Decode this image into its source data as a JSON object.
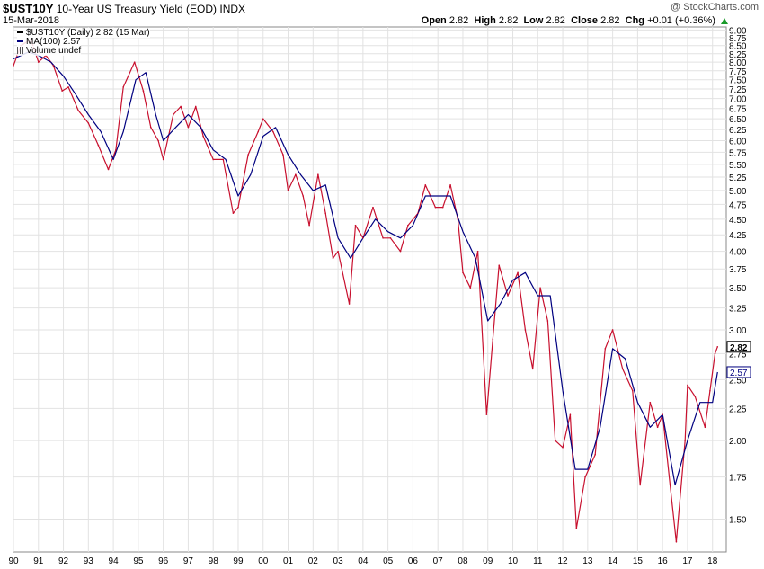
{
  "header": {
    "symbol": "$UST10Y",
    "name": "10-Year US Treasury Yield (EOD)",
    "exchange": "INDX",
    "date": "15-Mar-2018",
    "credit": "@ StockCharts.com",
    "ohlc": {
      "open_label": "Open",
      "open": "2.82",
      "high_label": "High",
      "high": "2.82",
      "low_label": "Low",
      "low": "2.82",
      "close_label": "Close",
      "close": "2.82",
      "chg_label": "Chg",
      "chg": "+0.01 (+0.36%)"
    }
  },
  "legend": {
    "price": "$UST10Y (Daily) 2.82 (15 Mar)",
    "ma": "MA(100) 2.57",
    "volume": "Volume undef"
  },
  "colors": {
    "price": "#c8102e",
    "ma": "#000080",
    "grid": "#e2e2e2",
    "axis": "#888888",
    "up": "#1a9a2a"
  },
  "chart_data": {
    "type": "line",
    "title": "$UST10Y 10-Year US Treasury Yield (EOD)",
    "y_scale": "log",
    "ylim": [
      1.33,
      9.1
    ],
    "xlim": [
      1990.0,
      2018.55
    ],
    "x_ticks": [
      "90",
      "91",
      "92",
      "93",
      "94",
      "95",
      "96",
      "97",
      "98",
      "99",
      "00",
      "01",
      "02",
      "03",
      "04",
      "05",
      "06",
      "07",
      "08",
      "09",
      "10",
      "11",
      "12",
      "13",
      "14",
      "15",
      "16",
      "17",
      "18"
    ],
    "y_ticks": [
      "1.50",
      "1.75",
      "2.00",
      "2.25",
      "2.50",
      "2.75",
      "3.00",
      "3.25",
      "3.50",
      "3.75",
      "4.00",
      "4.25",
      "4.50",
      "4.75",
      "5.00",
      "5.25",
      "5.50",
      "5.75",
      "6.00",
      "6.25",
      "6.50",
      "6.75",
      "7.00",
      "7.25",
      "7.50",
      "7.75",
      "8.00",
      "8.25",
      "8.50",
      "8.75",
      "9.00"
    ],
    "last_price_label": "2.82",
    "ma_label": "2.57",
    "series": [
      {
        "name": "$UST10Y (Daily)",
        "x": [
          1990.0,
          1990.3,
          1990.7,
          1991.0,
          1991.3,
          1991.6,
          1991.95,
          1992.2,
          1992.6,
          1993.0,
          1993.4,
          1993.8,
          1994.1,
          1994.4,
          1994.85,
          1995.2,
          1995.5,
          1995.8,
          1996.0,
          1996.4,
          1996.7,
          1997.0,
          1997.3,
          1997.6,
          1998.0,
          1998.4,
          1998.8,
          1999.0,
          1999.4,
          1999.8,
          2000.0,
          2000.4,
          2000.8,
          2001.0,
          2001.3,
          2001.6,
          2001.85,
          2002.2,
          2002.5,
          2002.8,
          2003.0,
          2003.45,
          2003.7,
          2004.0,
          2004.4,
          2004.8,
          2005.1,
          2005.5,
          2005.8,
          2006.2,
          2006.5,
          2006.9,
          2007.2,
          2007.5,
          2007.8,
          2008.0,
          2008.3,
          2008.6,
          2008.95,
          2009.2,
          2009.45,
          2009.8,
          2010.2,
          2010.5,
          2010.8,
          2011.1,
          2011.4,
          2011.7,
          2012.0,
          2012.3,
          2012.55,
          2012.9,
          2013.3,
          2013.7,
          2014.0,
          2014.4,
          2014.8,
          2015.1,
          2015.5,
          2015.8,
          2016.0,
          2016.3,
          2016.55,
          2016.9,
          2017.0,
          2017.3,
          2017.7,
          2017.9,
          2018.1,
          2018.2
        ],
        "y": [
          7.9,
          8.5,
          8.7,
          8.0,
          8.2,
          7.9,
          7.2,
          7.3,
          6.7,
          6.4,
          5.9,
          5.4,
          5.8,
          7.3,
          8.0,
          7.2,
          6.3,
          6.0,
          5.6,
          6.6,
          6.8,
          6.3,
          6.8,
          6.1,
          5.6,
          5.6,
          4.6,
          4.7,
          5.7,
          6.2,
          6.5,
          6.2,
          5.7,
          5.0,
          5.3,
          4.9,
          4.4,
          5.3,
          4.6,
          3.9,
          4.0,
          3.3,
          4.4,
          4.2,
          4.7,
          4.2,
          4.2,
          4.0,
          4.4,
          4.6,
          5.1,
          4.7,
          4.7,
          5.1,
          4.5,
          3.7,
          3.5,
          4.0,
          2.2,
          2.9,
          3.8,
          3.4,
          3.7,
          3.0,
          2.6,
          3.5,
          3.1,
          2.0,
          1.95,
          2.2,
          1.45,
          1.75,
          1.9,
          2.8,
          3.0,
          2.6,
          2.4,
          1.7,
          2.3,
          2.1,
          2.2,
          1.7,
          1.38,
          2.0,
          2.45,
          2.35,
          2.1,
          2.4,
          2.75,
          2.82
        ]
      },
      {
        "name": "MA(100)",
        "x": [
          1990.0,
          1990.6,
          1991.0,
          1991.5,
          1992.0,
          1992.5,
          1993.0,
          1993.5,
          1994.0,
          1994.4,
          1994.9,
          1995.3,
          1995.7,
          1996.0,
          1996.5,
          1997.0,
          1997.5,
          1998.0,
          1998.5,
          1999.0,
          1999.5,
          2000.0,
          2000.5,
          2001.0,
          2001.5,
          2002.0,
          2002.5,
          2003.0,
          2003.5,
          2004.0,
          2004.5,
          2005.0,
          2005.5,
          2006.0,
          2006.5,
          2007.0,
          2007.5,
          2008.0,
          2008.5,
          2009.0,
          2009.5,
          2010.0,
          2010.5,
          2011.0,
          2011.5,
          2012.0,
          2012.5,
          2013.0,
          2013.5,
          2014.0,
          2014.5,
          2015.0,
          2015.5,
          2016.0,
          2016.5,
          2017.0,
          2017.5,
          2018.0,
          2018.2
        ],
        "y": [
          8.1,
          8.3,
          8.2,
          8.0,
          7.6,
          7.1,
          6.6,
          6.2,
          5.6,
          6.2,
          7.5,
          7.7,
          6.6,
          6.0,
          6.3,
          6.6,
          6.3,
          5.8,
          5.6,
          4.9,
          5.3,
          6.1,
          6.3,
          5.7,
          5.3,
          5.0,
          5.1,
          4.2,
          3.9,
          4.2,
          4.5,
          4.3,
          4.2,
          4.4,
          4.9,
          4.9,
          4.9,
          4.3,
          3.9,
          3.1,
          3.3,
          3.6,
          3.7,
          3.4,
          3.4,
          2.4,
          1.8,
          1.8,
          2.1,
          2.8,
          2.7,
          2.3,
          2.1,
          2.2,
          1.7,
          2.0,
          2.3,
          2.3,
          2.57
        ]
      }
    ]
  }
}
